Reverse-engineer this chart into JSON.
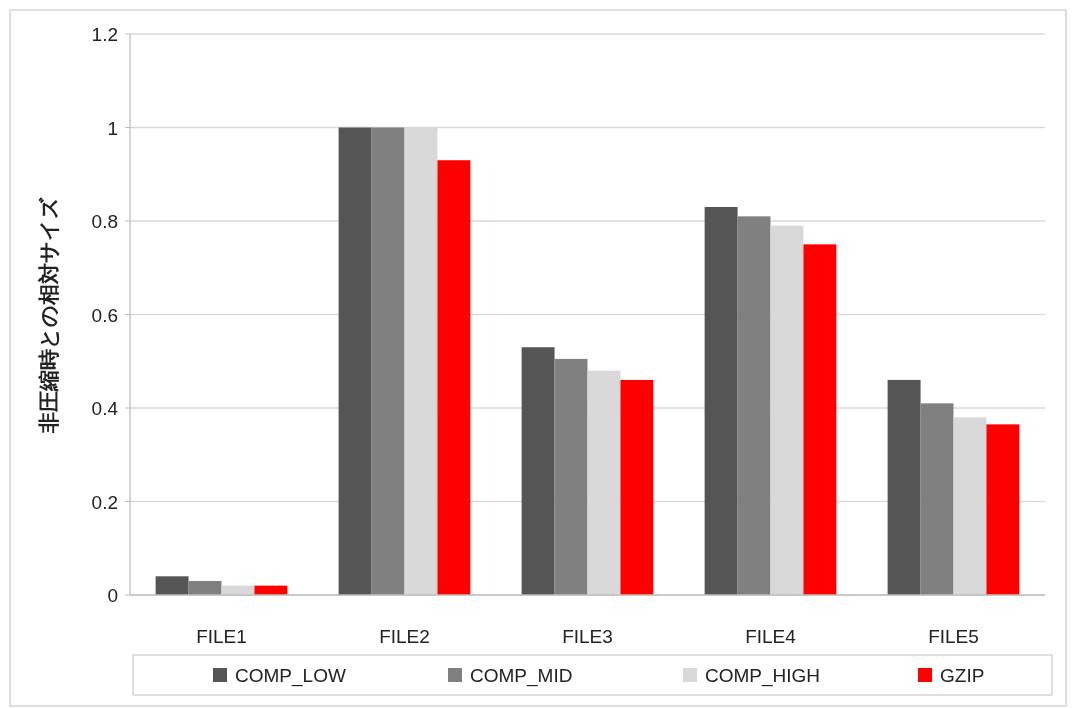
{
  "chart_data": {
    "type": "bar",
    "ylabel": "非圧縮時との相対サイズ",
    "categories": [
      "FILE1",
      "FILE2",
      "FILE3",
      "FILE4",
      "FILE5"
    ],
    "series": [
      {
        "name": "COMP_LOW",
        "color": "#555555",
        "values": [
          0.04,
          1,
          0.53,
          0.83,
          0.46
        ]
      },
      {
        "name": "COMP_MID",
        "color": "#808080",
        "values": [
          0.03,
          1,
          0.505,
          0.81,
          0.41
        ]
      },
      {
        "name": "COMP_HIGH",
        "color": "#d9d9d9",
        "values": [
          0.02,
          1,
          0.48,
          0.79,
          0.38
        ]
      },
      {
        "name": "GZIP",
        "color": "#ff0000",
        "values": [
          0.02,
          0.93,
          0.46,
          0.75,
          0.365
        ]
      }
    ],
    "ylim": [
      0,
      1.2
    ],
    "yticks": [
      0,
      0.2,
      0.4,
      0.6,
      0.8,
      1,
      1.2
    ],
    "grid": "y",
    "legend": "bottom"
  }
}
